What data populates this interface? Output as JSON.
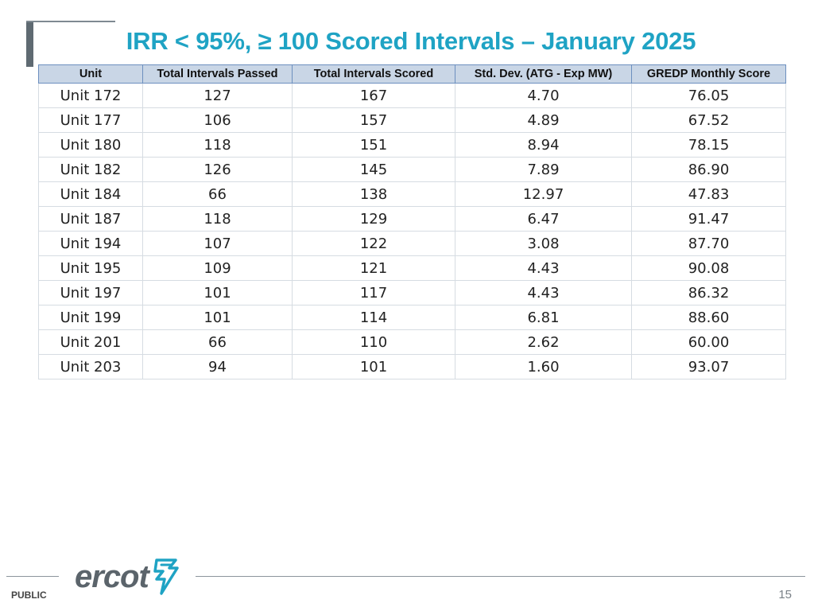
{
  "slide": {
    "title": "IRR < 95%, ≥ 100 Scored Intervals – January 2025",
    "page_number": "15",
    "classification": "PUBLIC"
  },
  "logo": {
    "text": "ercot",
    "mark_icon": "ercot-lightning-mark-icon",
    "text_color": "#5b646b",
    "mark_color": "#1fa3c4"
  },
  "colors": {
    "title": "#1fa3c4",
    "header_bg": "#c9d6e6",
    "header_border": "#6c8fbf"
  },
  "table": {
    "headers": [
      "Unit",
      "Total Intervals Passed",
      "Total Intervals Scored",
      "Std. Dev. (ATG - Exp MW)",
      "GREDP Monthly Score"
    ],
    "rows": [
      [
        "Unit 172",
        "127",
        "167",
        "4.70",
        "76.05"
      ],
      [
        "Unit 177",
        "106",
        "157",
        "4.89",
        "67.52"
      ],
      [
        "Unit 180",
        "118",
        "151",
        "8.94",
        "78.15"
      ],
      [
        "Unit 182",
        "126",
        "145",
        "7.89",
        "86.90"
      ],
      [
        "Unit 184",
        "66",
        "138",
        "12.97",
        "47.83"
      ],
      [
        "Unit 187",
        "118",
        "129",
        "6.47",
        "91.47"
      ],
      [
        "Unit 194",
        "107",
        "122",
        "3.08",
        "87.70"
      ],
      [
        "Unit 195",
        "109",
        "121",
        "4.43",
        "90.08"
      ],
      [
        "Unit 197",
        "101",
        "117",
        "4.43",
        "86.32"
      ],
      [
        "Unit 199",
        "101",
        "114",
        "6.81",
        "88.60"
      ],
      [
        "Unit 201",
        "66",
        "110",
        "2.62",
        "60.00"
      ],
      [
        "Unit 203",
        "94",
        "101",
        "1.60",
        "93.07"
      ]
    ]
  }
}
